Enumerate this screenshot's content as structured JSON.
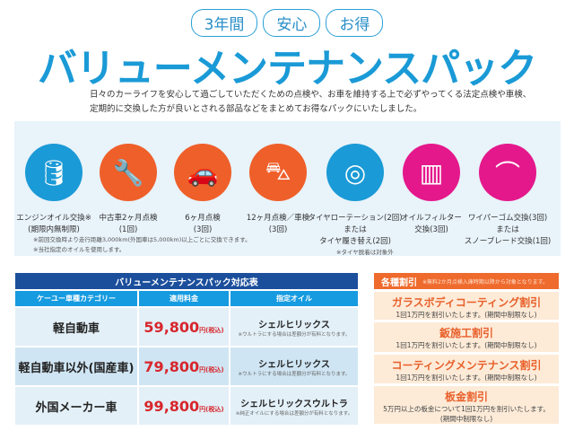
{
  "badges": [
    "3年間",
    "安心",
    "お得"
  ],
  "title": "バリューメンテナンスパック",
  "description": [
    "日々のカーライフを安心して過ごしていただくための点検や、お車を維持する上で必ずやってくる法定点検や車検、",
    "定期的に交換した方が良いとされる部品などをまとめてお得なパックにいたしました。"
  ],
  "services": [
    {
      "icon": "oil-can-icon",
      "color": "#1a9ad6",
      "label": [
        "エンジンオイル交換※",
        "(期限内無制限)"
      ]
    },
    {
      "icon": "wrench-icon",
      "color": "#ef5f2a",
      "label": [
        "中古車2ヶ月点検",
        "(1回)"
      ]
    },
    {
      "icon": "mechanic-car-icon",
      "color": "#ef5f2a",
      "label": [
        "6ヶ月点検",
        "(3回)"
      ]
    },
    {
      "icon": "car-lift-icon",
      "color": "#ef5f2a",
      "label": [
        "12ヶ月点検／車検",
        "(3回)"
      ]
    },
    {
      "icon": "tire-icon",
      "color": "#1a9ad6",
      "label": [
        "タイヤローテーション(2回)",
        "または",
        "タイヤ履き替え(2回)"
      ]
    },
    {
      "icon": "oil-filter-icon",
      "color": "#e4188b",
      "label": [
        "オイルフィルター",
        "交換(3回)"
      ]
    },
    {
      "icon": "wiper-icon",
      "color": "#e4188b",
      "label": [
        "ワイパーゴム交換(3回)",
        "または",
        "スノーブレード交換(1回)"
      ]
    }
  ],
  "notes": [
    "※前回交換時より走行距離3,000km(外国車は5,000km)以上ごとに交換できます。",
    "※当社指定のオイルを使用します。"
  ],
  "tire_note": "※タイヤ脱着は対象外",
  "table": {
    "title": "バリューメンテナンスパック対応表",
    "headers": [
      "ケーユー車種カテゴリー",
      "適用料金",
      "指定オイル"
    ],
    "rows": [
      {
        "category": "軽自動車",
        "price": "59,800",
        "price_unit": "円(税込)",
        "oil": "シェルヒリックス",
        "oil_note": "※ウルトラにする場合は差額分が有料となります。"
      },
      {
        "category": "軽自動車以外(国産車)",
        "price": "79,800",
        "price_unit": "円(税込)",
        "oil": "シェルヒリックス",
        "oil_note": "※ウルトラにする場合は差額分が有料となります。"
      },
      {
        "category": "外国メーカー車",
        "price": "99,800",
        "price_unit": "円(税込)",
        "oil": "シェルヒリックスウルトラ",
        "oil_note": "※純正オイルにする場合は差額分が有料となります。"
      }
    ]
  },
  "discounts": {
    "title": "各種割引",
    "note": "※無料2か月点検入庫時期以降から対象となります。",
    "items": [
      {
        "name": "ガラスボディコーティング割引",
        "text": [
          "1回1万円を割引いたします。(期間中制限なし)"
        ]
      },
      {
        "name": "鈑施工割引",
        "text": [
          "1回1万円を割引いたします。(期間中制限なし)"
        ]
      },
      {
        "name": "コーティングメンテナンス割引",
        "text": [
          "1回1万円を割引いたします。(期間中制限なし)"
        ]
      },
      {
        "name": "板金割引",
        "text": [
          "5万円以上の板金について1回1万円を割引いたします。",
          "(期間中制限なし)"
        ]
      }
    ]
  }
}
